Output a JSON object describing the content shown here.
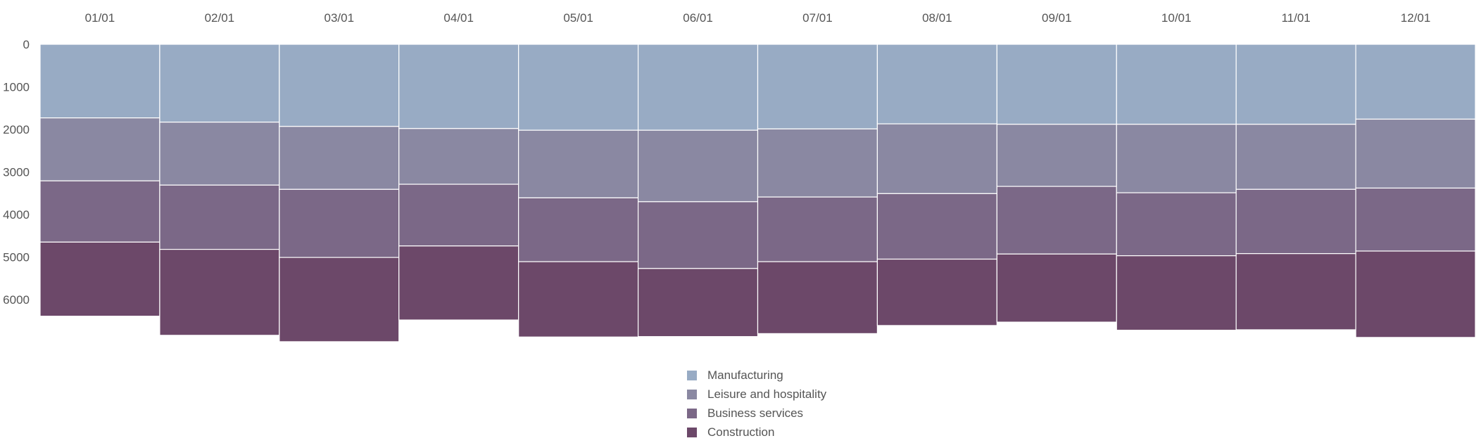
{
  "chart_data": {
    "type": "bar",
    "stacked": true,
    "orientation": "vertical",
    "x_axis_position": "top",
    "y_axis_reversed": true,
    "categories": [
      "01/01",
      "02/01",
      "03/01",
      "04/01",
      "05/01",
      "06/01",
      "07/01",
      "08/01",
      "09/01",
      "10/01",
      "11/01",
      "12/01"
    ],
    "series": [
      {
        "name": "Manufacturing",
        "color": "#98abc4",
        "values": [
          1730,
          1830,
          1930,
          1980,
          2020,
          2020,
          1990,
          1870,
          1880,
          1880,
          1880,
          1760
        ]
      },
      {
        "name": "Leisure and hospitality",
        "color": "#8a88a2",
        "values": [
          1480,
          1480,
          1480,
          1310,
          1590,
          1680,
          1600,
          1640,
          1460,
          1610,
          1530,
          1620
        ]
      },
      {
        "name": "Business services",
        "color": "#7b6887",
        "values": [
          1440,
          1510,
          1600,
          1450,
          1500,
          1570,
          1520,
          1540,
          1590,
          1480,
          1510,
          1480
        ]
      },
      {
        "name": "Construction",
        "color": "#6c4869",
        "values": [
          1740,
          2020,
          1980,
          1740,
          1770,
          1600,
          1690,
          1560,
          1600,
          1750,
          1790,
          2030
        ]
      }
    ],
    "ylim": [
      0,
      7000
    ],
    "yticks": [
      "0",
      "1000",
      "2000",
      "3000",
      "4000",
      "5000",
      "6000"
    ],
    "legend_position": "bottom-center",
    "grid": false,
    "title": "",
    "xlabel": "",
    "ylabel": ""
  }
}
